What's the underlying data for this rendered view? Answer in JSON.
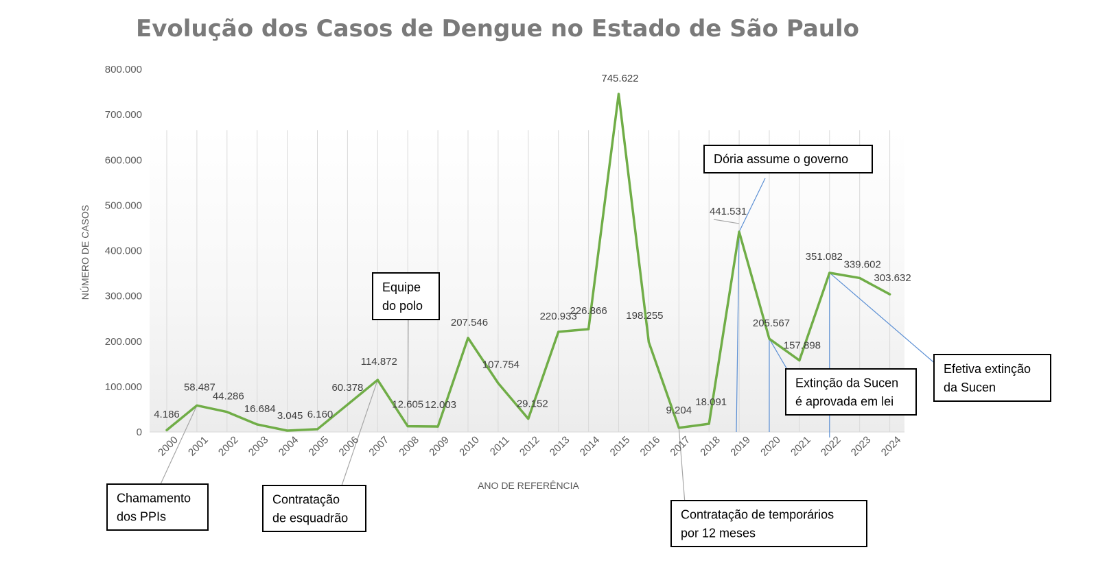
{
  "chart_data": {
    "type": "line",
    "title": "Evolução dos Casos de Dengue no Estado de São Paulo",
    "xlabel": "ANO DE REFERÊNCIA",
    "ylabel": "NÚMERO DE CASOS",
    "ylim": [
      0,
      800000
    ],
    "y_ticks": [
      {
        "value": 0,
        "label": "0"
      },
      {
        "value": 100000,
        "label": "100.000"
      },
      {
        "value": 200000,
        "label": "200.000"
      },
      {
        "value": 300000,
        "label": "300.000"
      },
      {
        "value": 400000,
        "label": "400.000"
      },
      {
        "value": 500000,
        "label": "500.000"
      },
      {
        "value": 600000,
        "label": "600.000"
      },
      {
        "value": 700000,
        "label": "700.000"
      },
      {
        "value": 800000,
        "label": "800.000"
      }
    ],
    "categories": [
      "2000",
      "2001",
      "2002",
      "2003",
      "2004",
      "2005",
      "2006",
      "2007",
      "2008",
      "2009",
      "2010",
      "2011",
      "2012",
      "2013",
      "2014",
      "2015",
      "2016",
      "2017",
      "2018",
      "2019",
      "2020",
      "2021",
      "2022",
      "2023",
      "2024"
    ],
    "series": [
      {
        "values": [
          4186,
          58487,
          44286,
          16684,
          3045,
          6160,
          60378,
          114872,
          12605,
          12003,
          207546,
          107754,
          29152,
          220933,
          226866,
          745622,
          198255,
          9204,
          18091,
          441531,
          205567,
          157898,
          351082,
          339602,
          303632
        ],
        "labels": [
          "4.186",
          "58.487",
          "44.286",
          "16.684",
          "3.045",
          "6.160",
          "60.378",
          "114.872",
          "12.605",
          "12.003",
          "207.546",
          "107.754",
          "29.152",
          "220.933",
          "226.866",
          "745.622",
          "198.255",
          "9.204",
          "18.091",
          "441.531",
          "205.567",
          "157.898",
          "351.082",
          "339.602",
          "303.632"
        ]
      }
    ],
    "grid": "vertical",
    "colors": {
      "line": "#70ad47",
      "grid": "#d9d9d9",
      "callout_blue": "#5b8fd4",
      "callout_gray": "#a6a6a6"
    },
    "annotations": [
      {
        "id": "chamamento",
        "lines": [
          "Chamamento",
          "dos PPIs"
        ],
        "year_index": 1
      },
      {
        "id": "contratacao-esquadrao",
        "lines": [
          "Contratação",
          "de esquadrão"
        ],
        "year_index": 7
      },
      {
        "id": "equipe-polo",
        "lines": [
          "Equipe",
          "do polo"
        ],
        "year_index": 8
      },
      {
        "id": "doria",
        "lines": [
          "Dória assume o governo"
        ],
        "year_index": 19
      },
      {
        "id": "temporarios",
        "lines": [
          "Contratação de temporários",
          "por 12 meses"
        ],
        "year_index": 17
      },
      {
        "id": "extincao-aprovada",
        "lines": [
          "Extinção da Sucen",
          "é aprovada em lei"
        ],
        "year_index": 20
      },
      {
        "id": "efetiva-extincao",
        "lines": [
          "Efetiva extinção",
          "da Sucen"
        ],
        "year_index": 22
      }
    ]
  }
}
